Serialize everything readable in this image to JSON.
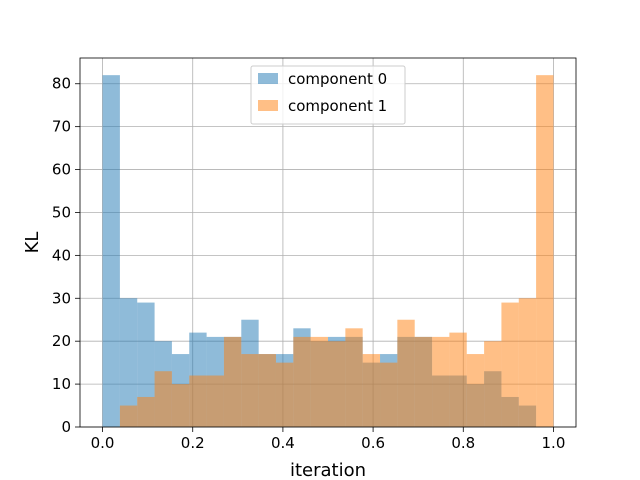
{
  "chart_data": {
    "type": "bar",
    "subtype": "overlapping-histogram",
    "title": "",
    "xlabel": "iteration",
    "ylabel": "KL",
    "xlim": [
      -0.05,
      1.05
    ],
    "ylim": [
      0,
      86
    ],
    "xticks": [
      0.0,
      0.2,
      0.4,
      0.6,
      0.8,
      1.0
    ],
    "xtick_labels": [
      "0.0",
      "0.2",
      "0.4",
      "0.6",
      "0.8",
      "1.0"
    ],
    "yticks": [
      0,
      10,
      20,
      30,
      40,
      50,
      60,
      70,
      80
    ],
    "ytick_labels": [
      "0",
      "10",
      "20",
      "30",
      "40",
      "50",
      "60",
      "70",
      "80"
    ],
    "grid": true,
    "legend_position": "top-center",
    "bin_edges": [
      0.0,
      0.0385,
      0.0769,
      0.1154,
      0.1538,
      0.1923,
      0.2308,
      0.2692,
      0.3077,
      0.3462,
      0.3846,
      0.4231,
      0.4615,
      0.5,
      0.5385,
      0.5769,
      0.6154,
      0.6538,
      0.6923,
      0.7308,
      0.7692,
      0.8077,
      0.8462,
      0.8846,
      0.9231,
      0.9615,
      1.0
    ],
    "series": [
      {
        "name": "component 0",
        "color": "#1f77b4",
        "alpha": 0.5,
        "values": [
          82,
          30,
          29,
          20,
          17,
          22,
          21,
          21,
          25,
          17,
          17,
          23,
          20,
          21,
          21,
          15,
          17,
          21,
          21,
          12,
          12,
          10,
          13,
          7,
          5,
          0
        ]
      },
      {
        "name": "component 1",
        "color": "#ff7f0e",
        "alpha": 0.5,
        "values": [
          0,
          5,
          7,
          13,
          10,
          12,
          12,
          21,
          17,
          17,
          15,
          21,
          21,
          20,
          23,
          17,
          15,
          25,
          21,
          21,
          22,
          17,
          20,
          29,
          30,
          82
        ]
      }
    ]
  }
}
